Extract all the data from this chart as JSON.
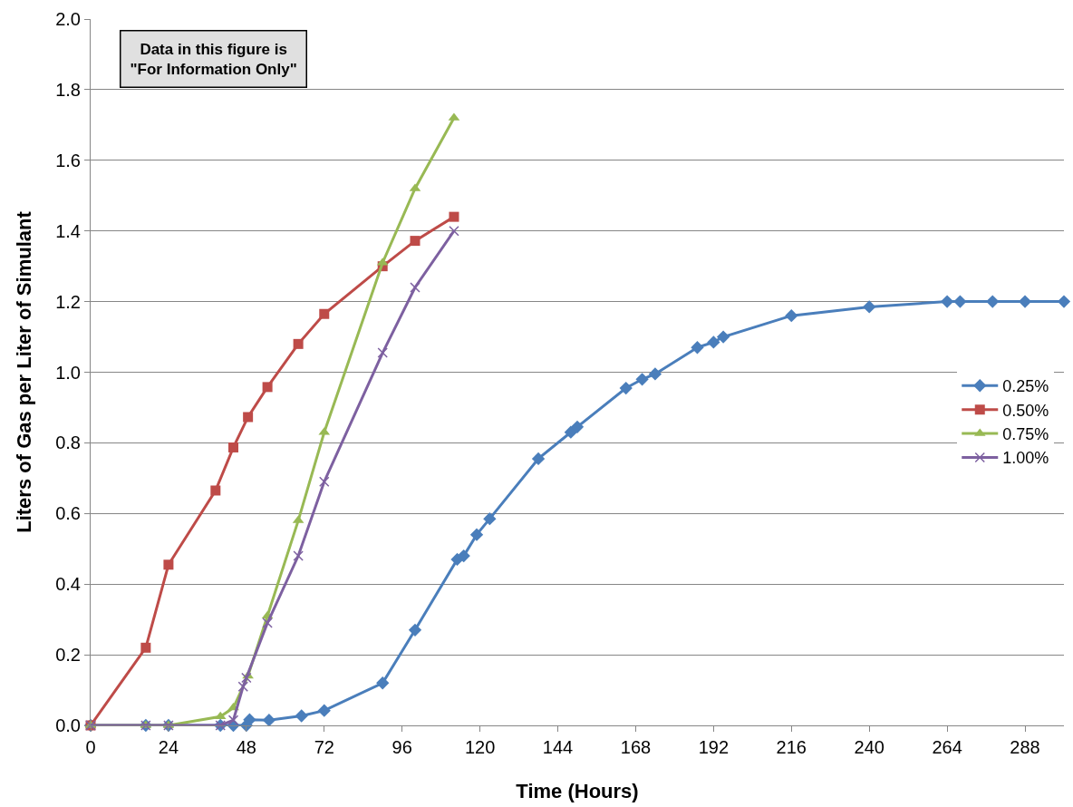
{
  "chart_data": {
    "type": "line",
    "xlabel": "Time (Hours)",
    "ylabel": "Liters of Gas per Liter of Simulant",
    "annotations": [
      "Data in this figure is\n\"For Information Only\""
    ],
    "xlim": [
      0,
      300
    ],
    "xticks": [
      0,
      24,
      48,
      72,
      96,
      120,
      144,
      168,
      192,
      216,
      240,
      264,
      288
    ],
    "ylim": [
      0,
      2.0
    ],
    "yticks": [
      {
        "value": 0,
        "label": "0.0"
      },
      {
        "value": 0.2,
        "label": "0.2"
      },
      {
        "value": 0.4,
        "label": "0.4"
      },
      {
        "value": 0.6,
        "label": "0.6"
      },
      {
        "value": 0.8,
        "label": "0.8"
      },
      {
        "value": 1.0,
        "label": "1.0"
      },
      {
        "value": 1.2,
        "label": "1.2"
      },
      {
        "value": 1.4,
        "label": "1.4"
      },
      {
        "value": 1.6,
        "label": "1.6"
      },
      {
        "value": 1.8,
        "label": "1.8"
      },
      {
        "value": 2.0,
        "label": "2.0"
      }
    ],
    "grid": "y",
    "legend": "right",
    "series": [
      {
        "name": "0.25%",
        "color": "#4a7ebb",
        "marker": "diamond",
        "x": [
          0,
          17,
          24,
          40,
          44,
          48,
          49,
          55,
          65,
          72,
          90,
          100,
          113,
          115,
          119,
          123,
          138,
          148,
          150,
          165,
          170,
          174,
          187,
          192,
          195,
          216,
          240,
          264,
          268,
          278,
          288,
          300
        ],
        "values": [
          0,
          0,
          0,
          0,
          0,
          0,
          0.016,
          0.015,
          0.027,
          0.042,
          0.12,
          0.27,
          0.47,
          0.48,
          0.54,
          0.585,
          0.755,
          0.83,
          0.845,
          0.955,
          0.98,
          0.995,
          1.07,
          1.085,
          1.1,
          1.16,
          1.185,
          1.2,
          1.2,
          1.2,
          1.2,
          1.2
        ]
      },
      {
        "name": "0.50%",
        "color": "#be4b48",
        "marker": "square",
        "x": [
          0,
          17,
          24,
          38.5,
          44,
          48.5,
          54.5,
          64,
          72,
          90,
          100,
          112
        ],
        "values": [
          0,
          0.22,
          0.455,
          0.665,
          0.787,
          0.873,
          0.958,
          1.08,
          1.165,
          1.3,
          1.372,
          1.44
        ]
      },
      {
        "name": "0.75%",
        "color": "#98b954",
        "marker": "triangle",
        "x": [
          0,
          17,
          24,
          40,
          44,
          48.5,
          54.5,
          64,
          72,
          90,
          100,
          112
        ],
        "values": [
          0,
          0,
          0,
          0.025,
          0.05,
          0.14,
          0.31,
          0.58,
          0.83,
          1.31,
          1.52,
          1.72
        ]
      },
      {
        "name": "1.00%",
        "color": "#7d60a0",
        "marker": "cross",
        "x": [
          0,
          17,
          24,
          40,
          44,
          47,
          48,
          54.5,
          64,
          72,
          90,
          100,
          112
        ],
        "values": [
          0,
          0,
          0,
          0,
          0.015,
          0.11,
          0.135,
          0.29,
          0.48,
          0.69,
          1.055,
          1.24,
          1.4
        ]
      }
    ]
  }
}
